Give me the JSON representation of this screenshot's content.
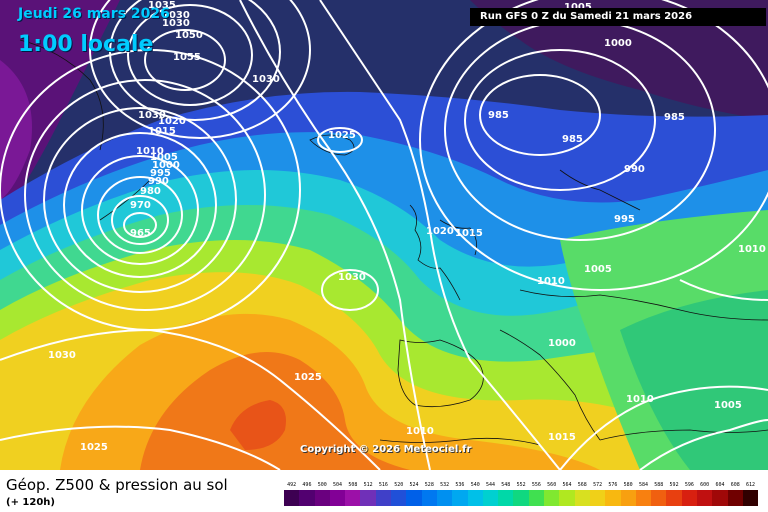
{
  "header": {
    "date": "Jeudi 26 mars 2026",
    "hour": "1:00 locale",
    "run": "Run GFS 0 Z du Samedi 21 mars 2026"
  },
  "copyright": "Copyright © 2026 Meteociel.fr",
  "footer": {
    "title": "Géop. Z500 & pression au sol",
    "lead": "(+ 120h)"
  },
  "colors": {
    "low_geop": "#4a0f6a",
    "cold": "#1f2a66",
    "mid": "#27c5e0",
    "warm": "#f3c51a",
    "hot": "#f0701a",
    "isobar": "#ffffff"
  },
  "isobar_labels": [
    "1035",
    "1030",
    "1030",
    "1050",
    "1055",
    "1030",
    "1030",
    "1020",
    "1015",
    "1010",
    "1005",
    "1000",
    "995",
    "990",
    "980",
    "970",
    "965",
    "1025",
    "1020",
    "1015",
    "1030",
    "1010",
    "1030",
    "1025",
    "1025",
    "1010",
    "1015",
    "1005",
    "1000",
    "985",
    "985",
    "990",
    "995",
    "1005",
    "1010",
    "1000",
    "1010",
    "1005",
    "1015"
  ],
  "scale": {
    "labels": [
      "492",
      "496",
      "500",
      "504",
      "508",
      "512",
      "516",
      "520",
      "524",
      "528",
      "532",
      "536",
      "540",
      "544",
      "548",
      "552",
      "556",
      "560",
      "564",
      "568",
      "572",
      "576",
      "580",
      "584",
      "588",
      "592",
      "596",
      "600",
      "604",
      "608",
      "612"
    ],
    "colors": [
      "#3d0052",
      "#520070",
      "#6a007f",
      "#820096",
      "#9c10a8",
      "#7030b8",
      "#4040c8",
      "#2050d8",
      "#0060e8",
      "#0078f0",
      "#0090f0",
      "#00a8f0",
      "#00c0e8",
      "#00d0d0",
      "#00d8a8",
      "#10d880",
      "#40e050",
      "#80e830",
      "#b0e820",
      "#d8e020",
      "#f0d018",
      "#f8b810",
      "#f8a010",
      "#f88010",
      "#f06010",
      "#e84010",
      "#d82010",
      "#c01010",
      "#a00808",
      "#700000",
      "#300000"
    ]
  }
}
